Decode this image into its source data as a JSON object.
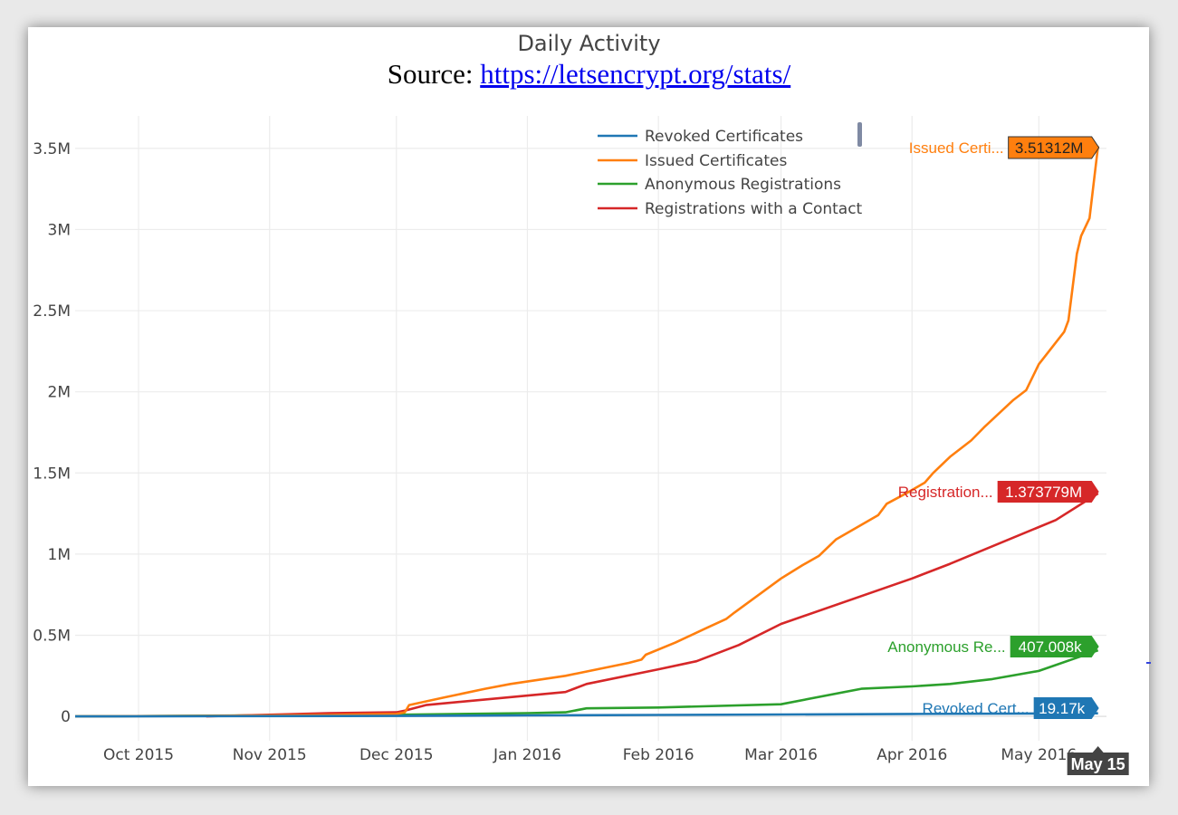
{
  "chart_data": {
    "type": "line",
    "title": "Daily Activity",
    "subtitle_prefix": "Source: ",
    "subtitle_link": "https://letsencrypt.org/stats/",
    "xlabel": "",
    "ylabel": "",
    "x_ticks": [
      {
        "date": "2015-10-01",
        "label": "Oct 2015"
      },
      {
        "date": "2015-11-01",
        "label": "Nov 2015"
      },
      {
        "date": "2015-12-01",
        "label": "Dec 2015"
      },
      {
        "date": "2016-01-01",
        "label": "Jan 2016"
      },
      {
        "date": "2016-02-01",
        "label": "Feb 2016"
      },
      {
        "date": "2016-03-01",
        "label": "Mar 2016"
      },
      {
        "date": "2016-04-01",
        "label": "Apr 2016"
      },
      {
        "date": "2016-05-01",
        "label": "May 2016"
      }
    ],
    "y_ticks": [
      {
        "value": 0,
        "label": "0"
      },
      {
        "value": 500000,
        "label": "0.5M"
      },
      {
        "value": 1000000,
        "label": "1M"
      },
      {
        "value": 1500000,
        "label": "1.5M"
      },
      {
        "value": 2000000,
        "label": "2M"
      },
      {
        "value": 2500000,
        "label": "2.5M"
      },
      {
        "value": 3000000,
        "label": "3M"
      },
      {
        "value": 3500000,
        "label": "3.5M"
      }
    ],
    "xlim": [
      "2015-09-16",
      "2016-05-17"
    ],
    "ylim": [
      -150000,
      3700000
    ],
    "grid": true,
    "legend_position": "top-right",
    "hover_date_label": "May 15",
    "series": [
      {
        "name": "Revoked Certificates",
        "short_label": "Revoked Cert...",
        "value_label": "19.17k",
        "color": "#1f77b4",
        "points": [
          [
            "2015-09-16",
            0
          ],
          [
            "2015-12-01",
            3000
          ],
          [
            "2016-01-01",
            6000
          ],
          [
            "2016-02-01",
            9000
          ],
          [
            "2016-03-01",
            12000
          ],
          [
            "2016-04-01",
            15000
          ],
          [
            "2016-05-15",
            19170
          ]
        ]
      },
      {
        "name": "Issued Certificates",
        "short_label": "Issued Certi...",
        "value_label": "3.51312M",
        "color": "#ff7f0e",
        "points": [
          [
            "2015-09-16",
            0
          ],
          [
            "2015-10-20",
            4000
          ],
          [
            "2015-11-15",
            9000
          ],
          [
            "2015-12-01",
            15000
          ],
          [
            "2015-12-03",
            25000
          ],
          [
            "2015-12-04",
            70000
          ],
          [
            "2015-12-12",
            115000
          ],
          [
            "2015-12-22",
            170000
          ],
          [
            "2015-12-28",
            200000
          ],
          [
            "2016-01-10",
            250000
          ],
          [
            "2016-01-25",
            330000
          ],
          [
            "2016-01-28",
            350000
          ],
          [
            "2016-01-29",
            380000
          ],
          [
            "2016-02-05",
            455000
          ],
          [
            "2016-02-12",
            540000
          ],
          [
            "2016-02-17",
            600000
          ],
          [
            "2016-02-19",
            640000
          ],
          [
            "2016-03-01",
            850000
          ],
          [
            "2016-03-06",
            930000
          ],
          [
            "2016-03-10",
            990000
          ],
          [
            "2016-03-14",
            1090000
          ],
          [
            "2016-03-18",
            1150000
          ],
          [
            "2016-03-24",
            1240000
          ],
          [
            "2016-03-26",
            1310000
          ],
          [
            "2016-03-31",
            1380000
          ],
          [
            "2016-04-04",
            1440000
          ],
          [
            "2016-04-06",
            1500000
          ],
          [
            "2016-04-10",
            1600000
          ],
          [
            "2016-04-15",
            1700000
          ],
          [
            "2016-04-18",
            1780000
          ],
          [
            "2016-04-25",
            1950000
          ],
          [
            "2016-04-28",
            2010000
          ],
          [
            "2016-05-01",
            2170000
          ],
          [
            "2016-05-04",
            2270000
          ],
          [
            "2016-05-07",
            2370000
          ],
          [
            "2016-05-08",
            2440000
          ],
          [
            "2016-05-10",
            2850000
          ],
          [
            "2016-05-11",
            2960000
          ],
          [
            "2016-05-13",
            3070000
          ],
          [
            "2016-05-15",
            3513120
          ]
        ]
      },
      {
        "name": "Anonymous Registrations",
        "short_label": "Anonymous Re...",
        "value_label": "407.008k",
        "color": "#2ca02c",
        "points": [
          [
            "2015-09-16",
            0
          ],
          [
            "2015-12-01",
            10000
          ],
          [
            "2016-01-01",
            20000
          ],
          [
            "2016-01-10",
            25000
          ],
          [
            "2016-01-15",
            50000
          ],
          [
            "2016-02-01",
            55000
          ],
          [
            "2016-03-01",
            75000
          ],
          [
            "2016-03-20",
            170000
          ],
          [
            "2016-04-01",
            185000
          ],
          [
            "2016-04-10",
            200000
          ],
          [
            "2016-04-20",
            230000
          ],
          [
            "2016-05-01",
            280000
          ],
          [
            "2016-05-15",
            407008
          ]
        ]
      },
      {
        "name": "Registrations with a Contact",
        "short_label": "Registration...",
        "value_label": "1.373779M",
        "color": "#d62728",
        "points": [
          [
            "2015-10-17",
            0
          ],
          [
            "2015-11-15",
            20000
          ],
          [
            "2015-12-01",
            25000
          ],
          [
            "2015-12-03",
            35000
          ],
          [
            "2015-12-08",
            70000
          ],
          [
            "2016-01-10",
            150000
          ],
          [
            "2016-01-15",
            200000
          ],
          [
            "2016-02-01",
            290000
          ],
          [
            "2016-02-10",
            340000
          ],
          [
            "2016-02-20",
            440000
          ],
          [
            "2016-03-01",
            570000
          ],
          [
            "2016-04-01",
            850000
          ],
          [
            "2016-04-10",
            940000
          ],
          [
            "2016-05-05",
            1210000
          ],
          [
            "2016-05-15",
            1373779
          ]
        ]
      }
    ]
  }
}
